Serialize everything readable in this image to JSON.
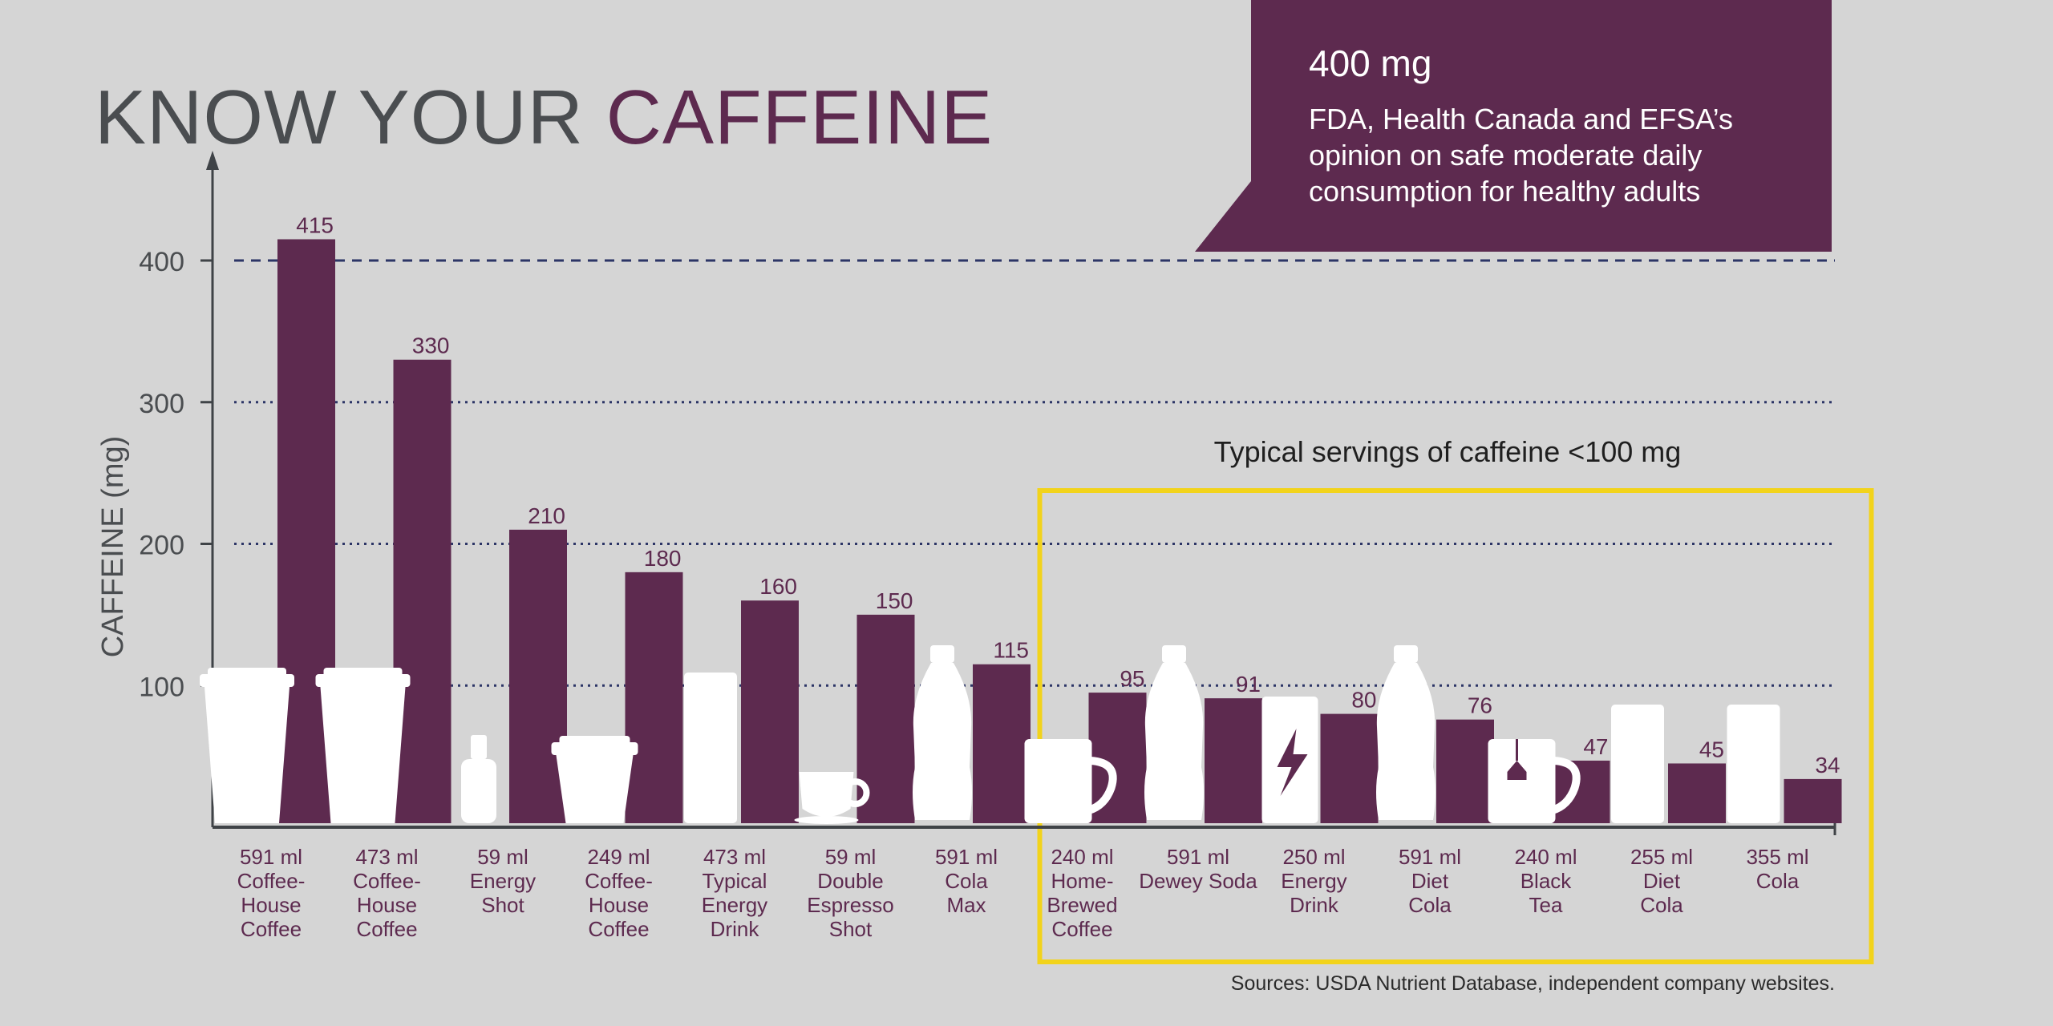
{
  "title": {
    "part1": "KNOW YOUR ",
    "part2": "CAFFEINE"
  },
  "callout": {
    "heading": "400 mg",
    "body": "FDA, Health Canada and EFSA’s opinion on safe moderate daily consumption for healthy adults"
  },
  "highlight_label": "Typical servings of caffeine <100 mg",
  "source": "Sources: USDA Nutrient Database, independent company websites.",
  "colors": {
    "background": "#d5d5d5",
    "bar": "#5d2a4f",
    "title_dark": "#4a4d50",
    "title_accent": "#5d2a4f",
    "reference_line": "#2c3566",
    "highlight_box": "#f2d31b",
    "icon": "#ffffff",
    "axis": "#3f4347"
  },
  "chart_data": {
    "type": "bar",
    "ylabel": "CAFFEINE (mg)",
    "xlabel": "",
    "ylim": [
      0,
      400
    ],
    "yticks": [
      100,
      200,
      300,
      400
    ],
    "grid": true,
    "reference_line": {
      "value": 400,
      "style": "dashed"
    },
    "highlight_group": {
      "from_index": 7,
      "to_index": 13
    },
    "categories": [
      [
        "591 ml",
        "Coffee-",
        "House",
        "Coffee"
      ],
      [
        "473 ml",
        "Coffee-",
        "House",
        "Coffee"
      ],
      [
        "59 ml",
        "Energy",
        "Shot"
      ],
      [
        "249 ml",
        "Coffee-",
        "House",
        "Coffee"
      ],
      [
        "473 ml",
        "Typical",
        "Energy",
        "Drink"
      ],
      [
        "59 ml",
        "Double",
        "Espresso",
        "Shot"
      ],
      [
        "591 ml",
        "Cola",
        "Max"
      ],
      [
        "240 ml",
        "Home-",
        "Brewed",
        "Coffee"
      ],
      [
        "591 ml",
        "Dewey Soda"
      ],
      [
        "250 ml",
        "Energy",
        "Drink"
      ],
      [
        "591 ml",
        "Diet",
        "Cola"
      ],
      [
        "240 ml",
        "Black",
        "Tea"
      ],
      [
        "255 ml",
        "Diet",
        "Cola"
      ],
      [
        "355 ml",
        "Cola"
      ]
    ],
    "values": [
      415,
      330,
      210,
      180,
      160,
      150,
      115,
      95,
      91,
      80,
      76,
      47,
      45,
      34
    ],
    "icons": [
      "tall-cup-icon",
      "tall-cup-icon",
      "shot-bottle-icon",
      "short-cup-icon",
      "tall-can-icon",
      "espresso-cup-icon",
      "bottle-icon",
      "mug-icon",
      "bottle-icon",
      "energy-can-icon",
      "bottle-icon",
      "tea-mug-icon",
      "can-icon",
      "can-icon"
    ]
  }
}
